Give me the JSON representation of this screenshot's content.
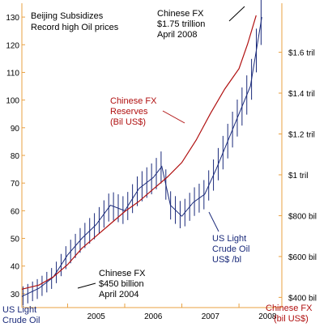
{
  "chart_data": {
    "type": "line",
    "title": "Beijing Subsidizes",
    "subtitle": "Record high Oil prices",
    "x_axis": {
      "ticks": [
        "2005",
        "2006",
        "2007",
        "2008"
      ],
      "range": [
        2004.2,
        2008.75
      ]
    },
    "left_axis": {
      "range": [
        25,
        135
      ],
      "ticks": [
        30,
        40,
        50,
        60,
        70,
        80,
        90,
        100,
        110,
        120,
        130
      ],
      "label_lines": [
        "US Light",
        "Crude Oil"
      ]
    },
    "right_axis": {
      "range": [
        350,
        1840
      ],
      "ticks": [
        {
          "value": 400,
          "label": "$400 bil"
        },
        {
          "value": 600,
          "label": "$600 bil"
        },
        {
          "value": 800,
          "label": "$800 bil"
        },
        {
          "value": 1000,
          "label": "$1 tril"
        },
        {
          "value": 1200,
          "label": "$1.2 tril"
        },
        {
          "value": 1400,
          "label": "$1.4 tril"
        },
        {
          "value": 1600,
          "label": "$1.6 tril"
        }
      ],
      "label_lines": [
        "Chinese FX",
        "(bil US$)"
      ]
    },
    "series": [
      {
        "name": "Chinese FX Reserves",
        "axis": "right",
        "color": "#b01010",
        "x": [
          2004.2,
          2004.5,
          2004.75,
          2005.0,
          2005.25,
          2005.5,
          2005.75,
          2006.0,
          2006.25,
          2006.5,
          2006.75,
          2007.0,
          2007.25,
          2007.5,
          2007.75,
          2008.0,
          2008.15,
          2008.3
        ],
        "y": [
          440,
          460,
          500,
          560,
          640,
          700,
          760,
          820,
          870,
          930,
          990,
          1060,
          1170,
          1300,
          1420,
          1520,
          1640,
          1780
        ]
      },
      {
        "name": "US Light Crude Oil",
        "axis": "left",
        "color": "#1a2a7a",
        "x": [
          2004.2,
          2004.5,
          2004.75,
          2005.0,
          2005.25,
          2005.5,
          2005.75,
          2006.0,
          2006.25,
          2006.5,
          2006.65,
          2006.8,
          2007.0,
          2007.2,
          2007.4,
          2007.6,
          2007.8,
          2008.0,
          2008.2,
          2008.4
        ],
        "y": [
          29,
          32,
          36,
          44,
          50,
          55,
          62,
          60,
          68,
          72,
          76,
          62,
          58,
          63,
          66,
          75,
          85,
          95,
          105,
          130
        ]
      }
    ],
    "annotations": {
      "fx_top": [
        "Chinese FX",
        "$1.75 trillion",
        "April 2008"
      ],
      "fx_label": [
        "Chinese FX",
        "Reserves",
        "(Bil US$)"
      ],
      "fx_bottom": [
        "Chinese FX",
        "$450 billion",
        "April 2004"
      ],
      "oil_label": [
        "US Light",
        "Crude Oil",
        "US$ /bl"
      ]
    },
    "grid": false
  }
}
